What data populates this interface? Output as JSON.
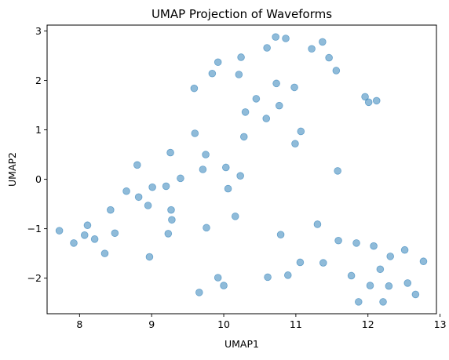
{
  "chart_data": {
    "type": "scatter",
    "title": "UMAP Projection of Waveforms",
    "xlabel": "UMAP1",
    "ylabel": "UMAP2",
    "xlim": [
      7.55,
      12.95
    ],
    "ylim": [
      -2.72,
      3.12
    ],
    "xticks": [
      8,
      9,
      10,
      11,
      12,
      13
    ],
    "yticks": [
      -2,
      -1,
      0,
      1,
      2,
      3
    ],
    "xtick_labels": [
      "8",
      "9",
      "10",
      "11",
      "12",
      "13"
    ],
    "ytick_labels": [
      "−2",
      "−1",
      "0",
      "1",
      "2",
      "3"
    ],
    "grid": false,
    "legend": false,
    "marker_color": "#1f77b4",
    "marker_opacity": 0.5,
    "points": [
      {
        "x": 7.72,
        "y": -1.04
      },
      {
        "x": 7.92,
        "y": -1.29
      },
      {
        "x": 8.07,
        "y": -1.13
      },
      {
        "x": 8.11,
        "y": -0.93
      },
      {
        "x": 8.21,
        "y": -1.21
      },
      {
        "x": 8.35,
        "y": -1.5
      },
      {
        "x": 8.43,
        "y": -0.62
      },
      {
        "x": 8.49,
        "y": -1.09
      },
      {
        "x": 8.65,
        "y": -0.24
      },
      {
        "x": 8.8,
        "y": 0.29
      },
      {
        "x": 8.82,
        "y": -0.36
      },
      {
        "x": 8.95,
        "y": -0.53
      },
      {
        "x": 8.97,
        "y": -1.57
      },
      {
        "x": 9.01,
        "y": -0.16
      },
      {
        "x": 9.2,
        "y": -0.14
      },
      {
        "x": 9.23,
        "y": -1.1
      },
      {
        "x": 9.26,
        "y": 0.54
      },
      {
        "x": 9.27,
        "y": -0.62
      },
      {
        "x": 9.28,
        "y": -0.82
      },
      {
        "x": 9.4,
        "y": 0.02
      },
      {
        "x": 9.59,
        "y": 1.84
      },
      {
        "x": 9.6,
        "y": 0.93
      },
      {
        "x": 9.66,
        "y": -2.29
      },
      {
        "x": 9.71,
        "y": 0.2
      },
      {
        "x": 9.75,
        "y": 0.5
      },
      {
        "x": 9.76,
        "y": -0.98
      },
      {
        "x": 9.84,
        "y": 2.14
      },
      {
        "x": 9.92,
        "y": 2.37
      },
      {
        "x": 9.92,
        "y": -1.99
      },
      {
        "x": 10.0,
        "y": -2.15
      },
      {
        "x": 10.03,
        "y": 0.24
      },
      {
        "x": 10.06,
        "y": -0.19
      },
      {
        "x": 10.16,
        "y": -0.75
      },
      {
        "x": 10.21,
        "y": 2.12
      },
      {
        "x": 10.23,
        "y": 0.07
      },
      {
        "x": 10.24,
        "y": 2.47
      },
      {
        "x": 10.28,
        "y": 0.86
      },
      {
        "x": 10.3,
        "y": 1.36
      },
      {
        "x": 10.45,
        "y": 1.63
      },
      {
        "x": 10.59,
        "y": 1.23
      },
      {
        "x": 10.6,
        "y": 2.66
      },
      {
        "x": 10.61,
        "y": -1.98
      },
      {
        "x": 10.72,
        "y": 2.88
      },
      {
        "x": 10.73,
        "y": 1.94
      },
      {
        "x": 10.77,
        "y": 1.49
      },
      {
        "x": 10.79,
        "y": -1.12
      },
      {
        "x": 10.86,
        "y": 2.85
      },
      {
        "x": 10.89,
        "y": -1.94
      },
      {
        "x": 10.98,
        "y": 1.86
      },
      {
        "x": 10.99,
        "y": 0.72
      },
      {
        "x": 11.06,
        "y": -1.68
      },
      {
        "x": 11.07,
        "y": 0.97
      },
      {
        "x": 11.22,
        "y": 2.64
      },
      {
        "x": 11.3,
        "y": -0.91
      },
      {
        "x": 11.37,
        "y": 2.78
      },
      {
        "x": 11.38,
        "y": -1.69
      },
      {
        "x": 11.46,
        "y": 2.46
      },
      {
        "x": 11.56,
        "y": 2.2
      },
      {
        "x": 11.58,
        "y": 0.17
      },
      {
        "x": 11.59,
        "y": -1.24
      },
      {
        "x": 11.77,
        "y": -1.95
      },
      {
        "x": 11.84,
        "y": -1.29
      },
      {
        "x": 11.87,
        "y": -2.48
      },
      {
        "x": 11.96,
        "y": 1.67
      },
      {
        "x": 12.01,
        "y": 1.56
      },
      {
        "x": 12.03,
        "y": -2.15
      },
      {
        "x": 12.08,
        "y": -1.35
      },
      {
        "x": 12.12,
        "y": 1.59
      },
      {
        "x": 12.17,
        "y": -1.82
      },
      {
        "x": 12.21,
        "y": -2.48
      },
      {
        "x": 12.29,
        "y": -2.16
      },
      {
        "x": 12.31,
        "y": -1.56
      },
      {
        "x": 12.51,
        "y": -1.43
      },
      {
        "x": 12.55,
        "y": -2.1
      },
      {
        "x": 12.66,
        "y": -2.33
      },
      {
        "x": 12.77,
        "y": -1.66
      }
    ]
  }
}
